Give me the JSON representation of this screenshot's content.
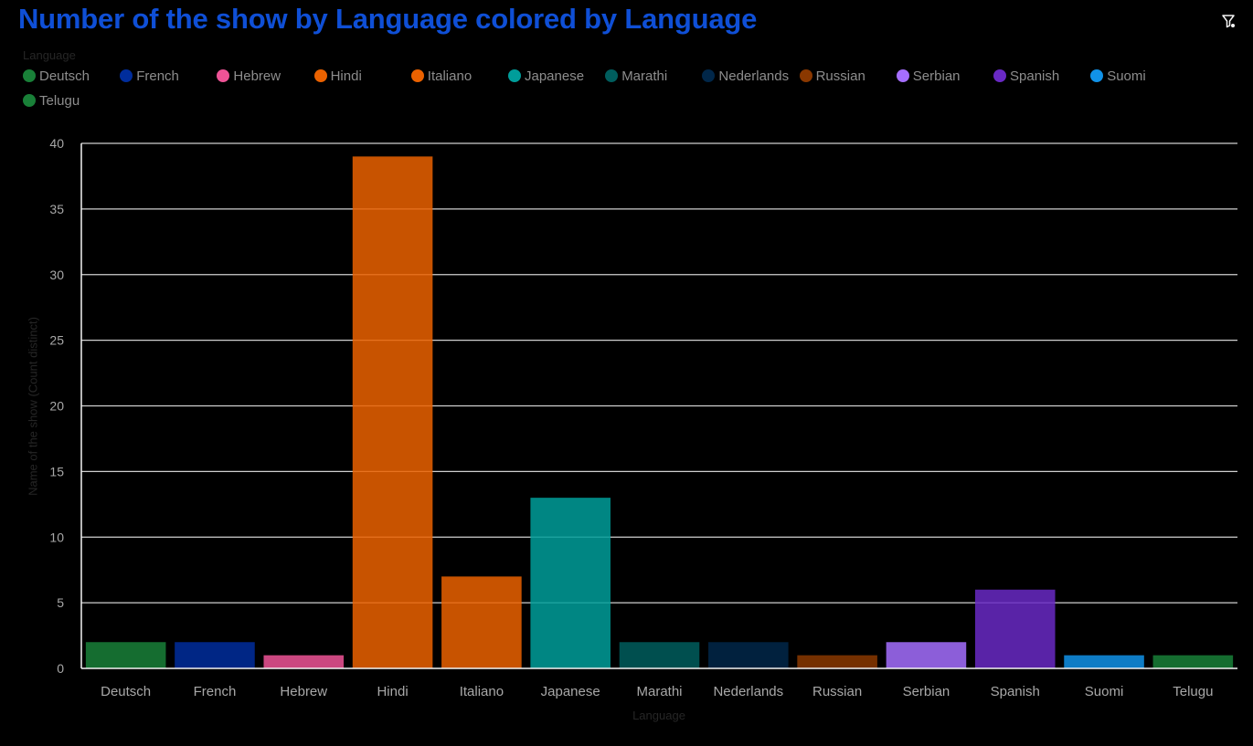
{
  "header": {
    "title": "Number of the show by Language colored by Language",
    "filter_icon": "filter-icon"
  },
  "legend": {
    "title": "Language",
    "items": [
      {
        "label": "Deutsch",
        "color": "#198038"
      },
      {
        "label": "French",
        "color": "#002d9c"
      },
      {
        "label": "Hebrew",
        "color": "#ee5396"
      },
      {
        "label": "Hindi",
        "color": "#eb6200"
      },
      {
        "label": "Italiano",
        "color": "#eb6200"
      },
      {
        "label": "Japanese",
        "color": "#009d9a"
      },
      {
        "label": "Marathi",
        "color": "#005d5d"
      },
      {
        "label": "Nederlands",
        "color": "#012749"
      },
      {
        "label": "Russian",
        "color": "#8a3800"
      },
      {
        "label": "Serbian",
        "color": "#a56eff"
      },
      {
        "label": "Spanish",
        "color": "#6929c4"
      },
      {
        "label": "Suomi",
        "color": "#1192e8"
      },
      {
        "label": "Telugu",
        "color": "#198038"
      }
    ]
  },
  "chart_data": {
    "type": "bar",
    "categories": [
      "Deutsch",
      "French",
      "Hebrew",
      "Hindi",
      "Italiano",
      "Japanese",
      "Marathi",
      "Nederlands",
      "Russian",
      "Serbian",
      "Spanish",
      "Suomi",
      "Telugu"
    ],
    "values": [
      2,
      2,
      1,
      39,
      7,
      13,
      2,
      2,
      1,
      2,
      6,
      1,
      1
    ],
    "colors": [
      "#198038",
      "#002d9c",
      "#ee5396",
      "#eb6200",
      "#eb6200",
      "#009d9a",
      "#005d5d",
      "#012749",
      "#8a3800",
      "#a56eff",
      "#6929c4",
      "#1192e8",
      "#198038"
    ],
    "xlabel": "Language",
    "ylabel": "Name of the show (Count distinct)",
    "ylim": [
      0,
      40
    ],
    "yticks": [
      0,
      5,
      10,
      15,
      20,
      25,
      30,
      35,
      40
    ],
    "grid": true,
    "legend_position": "top"
  }
}
